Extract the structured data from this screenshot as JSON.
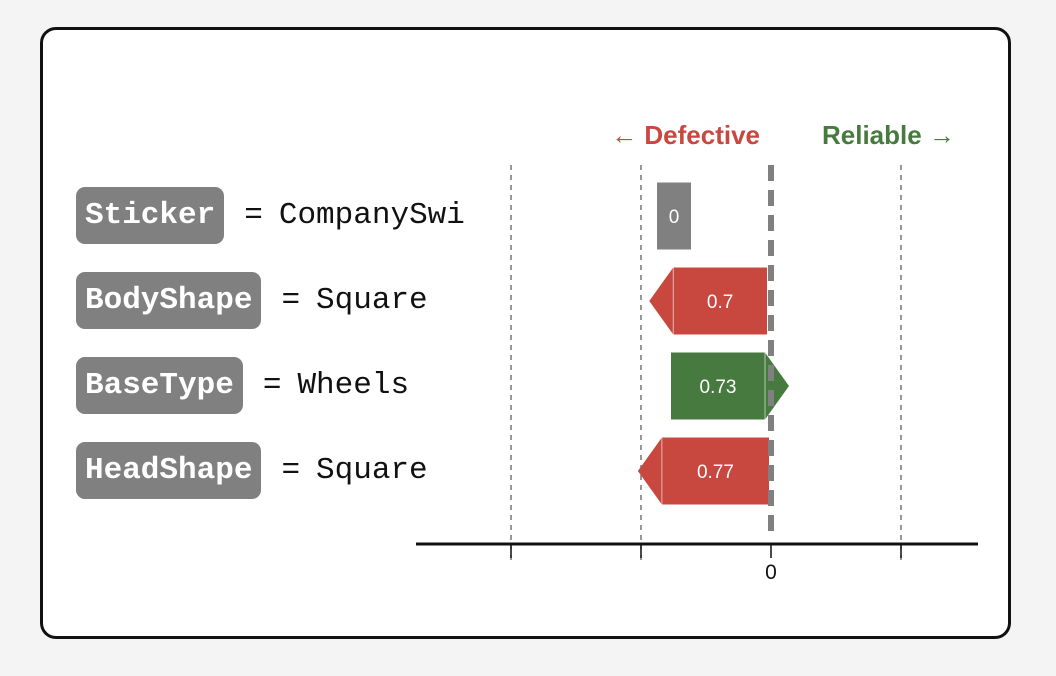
{
  "chart_data": {
    "type": "bar",
    "orientation": "horizontal",
    "direction_labels": {
      "negative": "← Defective",
      "positive": "Reliable →"
    },
    "colors": {
      "negative": "#c8473f",
      "positive": "#477a3f",
      "neutral": "#808080",
      "axis": "#111111",
      "grid": "#777777",
      "zero_line": "#808080"
    },
    "rows": [
      {
        "feature": "Sticker",
        "value": "CompanySwiss",
        "contribution": 0,
        "label": "0"
      },
      {
        "feature": "BodyShape",
        "value": "Square",
        "contribution": -0.7,
        "label": "0.7"
      },
      {
        "feature": "BaseType",
        "value": "Wheels",
        "contribution": 0.73,
        "label": "0.73"
      },
      {
        "feature": "HeadShape",
        "value": "Square",
        "contribution": -0.77,
        "label": "0.77"
      }
    ],
    "x_ticks": [
      {
        "value": -1.6,
        "label": ""
      },
      {
        "value": -0.8,
        "label": ""
      },
      {
        "value": 0,
        "label": "0"
      },
      {
        "value": 0.8,
        "label": ""
      }
    ],
    "xlim": [
      -2.2,
      1.3
    ],
    "grid": true
  }
}
